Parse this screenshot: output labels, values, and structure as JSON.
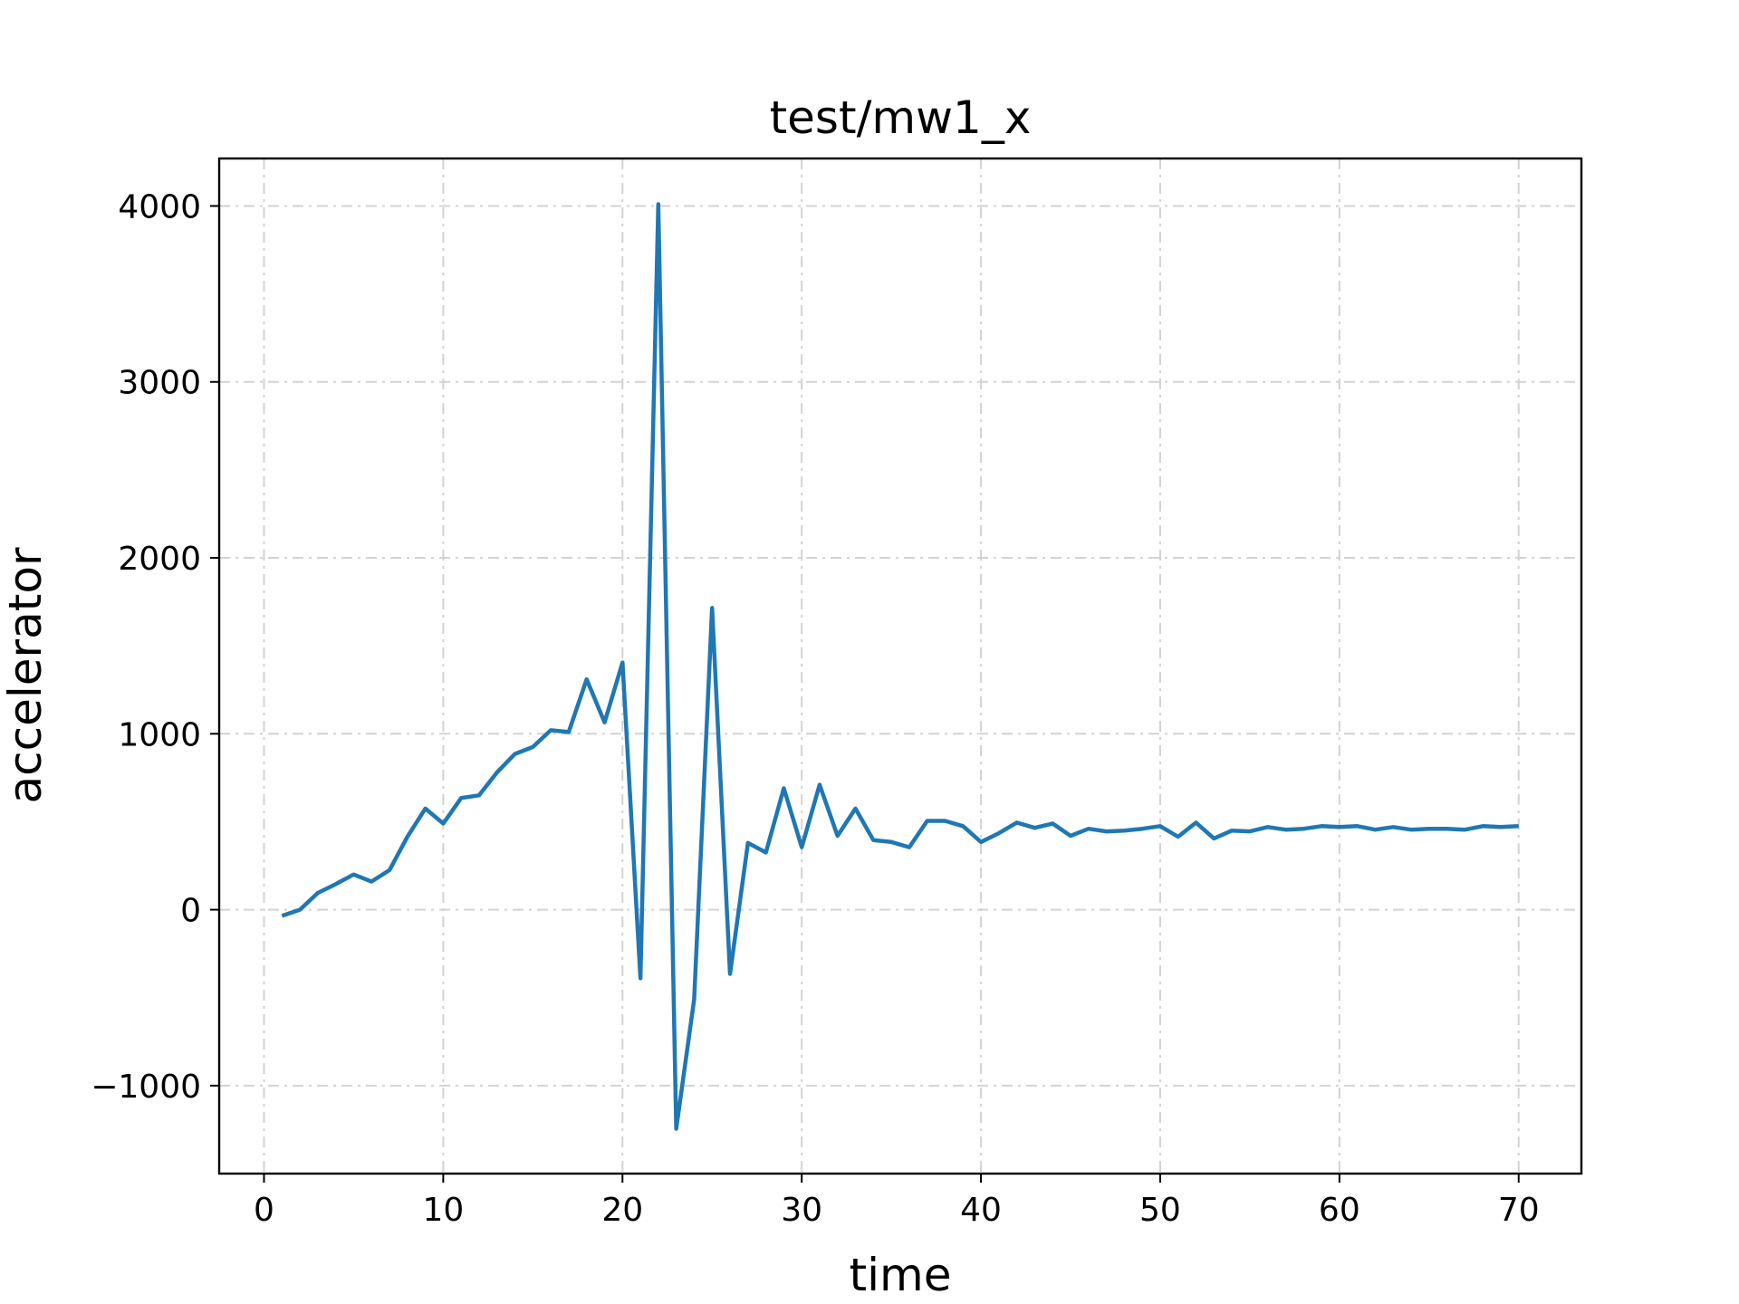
{
  "chart_data": {
    "type": "line",
    "title": "test/mw1_x",
    "xlabel": "time",
    "ylabel": "accelerator",
    "xlim": [
      -2.5,
      73.5
    ],
    "ylim": [
      -1500,
      4270
    ],
    "xticks": [
      0,
      10,
      20,
      30,
      40,
      50,
      60,
      70
    ],
    "yticks": [
      -1000,
      0,
      1000,
      2000,
      3000,
      4000
    ],
    "ytick_labels": [
      "−1000",
      "0",
      "1000",
      "2000",
      "3000",
      "4000"
    ],
    "grid": true,
    "series": [
      {
        "color": "#1f77b4",
        "x": [
          1,
          2,
          3,
          4,
          5,
          6,
          7,
          8,
          9,
          10,
          11,
          12,
          13,
          14,
          15,
          16,
          17,
          18,
          19,
          20,
          21,
          22,
          23,
          24,
          25,
          26,
          27,
          28,
          29,
          30,
          31,
          32,
          33,
          34,
          35,
          36,
          37,
          38,
          39,
          40,
          41,
          42,
          43,
          44,
          45,
          46,
          47,
          48,
          49,
          50,
          51,
          52,
          53,
          54,
          55,
          56,
          57,
          58,
          59,
          60,
          61,
          62,
          63,
          64,
          65,
          66,
          67,
          68,
          69,
          70
        ],
        "y": [
          -35,
          0,
          95,
          145,
          200,
          160,
          225,
          415,
          575,
          490,
          635,
          650,
          780,
          885,
          925,
          1020,
          1010,
          1310,
          1065,
          1405,
          -390,
          4010,
          -1245,
          -510,
          1715,
          -365,
          380,
          325,
          690,
          355,
          710,
          420,
          575,
          395,
          385,
          355,
          505,
          505,
          475,
          385,
          435,
          495,
          465,
          490,
          420,
          460,
          445,
          450,
          460,
          475,
          415,
          495,
          405,
          450,
          445,
          470,
          455,
          460,
          475,
          470,
          475,
          455,
          470,
          455,
          460,
          460,
          455,
          475,
          470,
          475
        ]
      }
    ]
  }
}
